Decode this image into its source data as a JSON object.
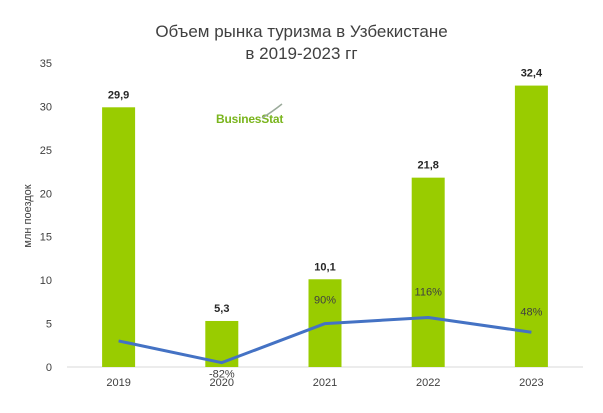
{
  "chart_data": {
    "type": "bar",
    "title_line1": "Объем рынка туризма в Узбекистане",
    "title_line2": "в 2019-2023 гг",
    "ylabel": "млн поездок",
    "ylim": [
      0,
      35
    ],
    "yticks": [
      "0",
      "5",
      "10",
      "15",
      "20",
      "25",
      "30",
      "35"
    ],
    "categories": [
      "2019",
      "2020",
      "2021",
      "2022",
      "2023"
    ],
    "values": [
      29.9,
      5.3,
      10.1,
      21.8,
      32.4
    ],
    "value_labels": [
      "29,9",
      "5,3",
      "10,1",
      "21,8",
      "32,4"
    ],
    "growth_line": {
      "values": [
        3.0,
        0.5,
        5.0,
        5.7,
        4.0
      ],
      "labels": [
        "",
        "-82%",
        "90%",
        "116%",
        "48%"
      ]
    },
    "bar_color": "#99cc00",
    "line_color": "#4472c4"
  },
  "logo": "BusinesStat"
}
